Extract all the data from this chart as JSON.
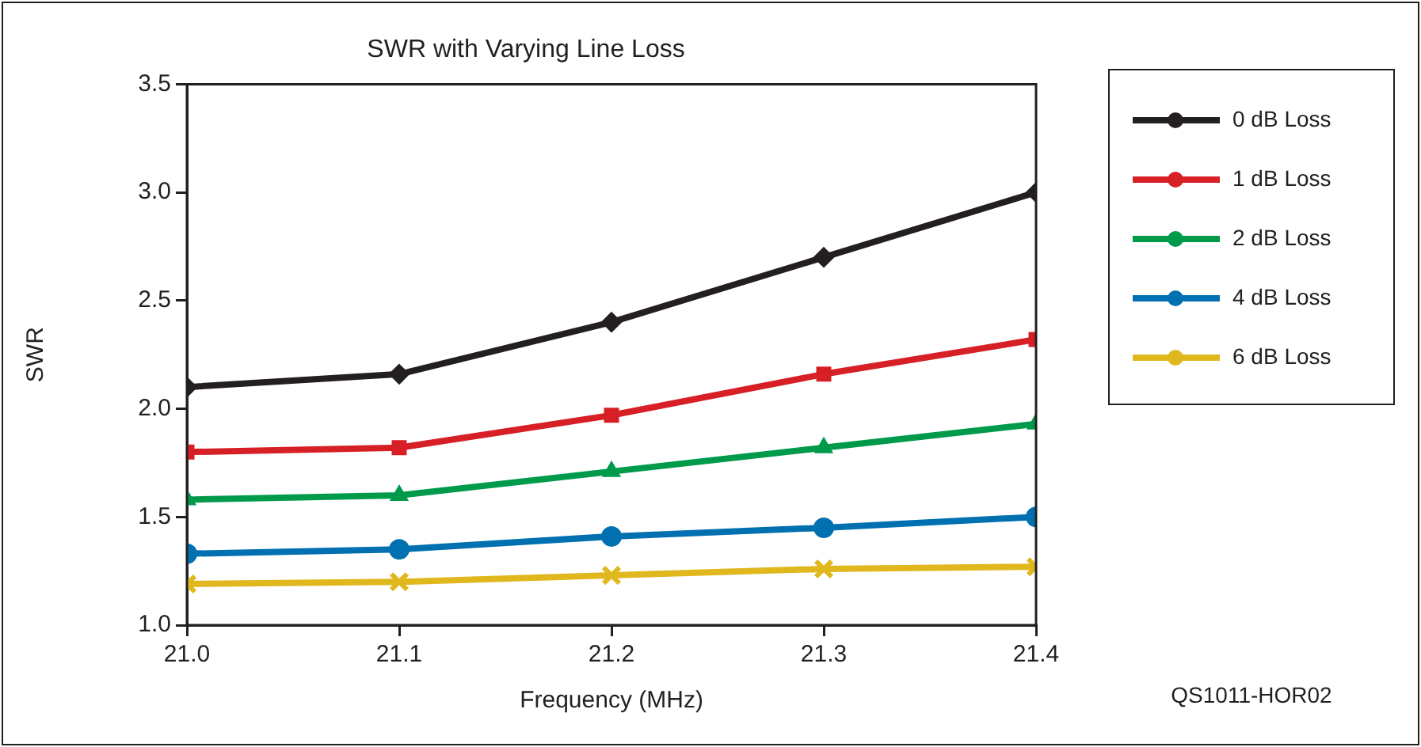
{
  "chart_data": {
    "type": "line",
    "title": "SWR with Varying Line Loss",
    "xlabel": "Frequency (MHz)",
    "ylabel": "SWR",
    "x": [
      21.0,
      21.1,
      21.2,
      21.3,
      21.4
    ],
    "series": [
      {
        "name": "0 dB Loss",
        "color": "#231f20",
        "marker": "diamond",
        "values": [
          2.1,
          2.16,
          2.4,
          2.7,
          3.0
        ]
      },
      {
        "name": "1 dB Loss",
        "color": "#d71f26",
        "marker": "square",
        "values": [
          1.8,
          1.82,
          1.97,
          2.16,
          2.32
        ]
      },
      {
        "name": "2 dB Loss",
        "color": "#009a4b",
        "marker": "triangle",
        "values": [
          1.58,
          1.6,
          1.71,
          1.82,
          1.93
        ]
      },
      {
        "name": "4 dB Loss",
        "color": "#0070b0",
        "marker": "circle",
        "values": [
          1.33,
          1.35,
          1.41,
          1.45,
          1.5
        ]
      },
      {
        "name": "6 dB Loss",
        "color": "#e0b81e",
        "marker": "cross",
        "values": [
          1.19,
          1.2,
          1.23,
          1.26,
          1.27
        ]
      }
    ],
    "xlim": [
      21.0,
      21.4
    ],
    "xticks": [
      {
        "value": 21.0,
        "label": "21.0"
      },
      {
        "value": 21.1,
        "label": "21.1"
      },
      {
        "value": 21.2,
        "label": "21.2"
      },
      {
        "value": 21.3,
        "label": "21.3"
      },
      {
        "value": 21.4,
        "label": "21.4"
      }
    ],
    "ylim": [
      1.0,
      3.5
    ],
    "yticks": [
      {
        "value": 1.0,
        "label": "1.0"
      },
      {
        "value": 1.5,
        "label": "1.5"
      },
      {
        "value": 2.0,
        "label": "2.0"
      },
      {
        "value": 2.5,
        "label": "2.5"
      },
      {
        "value": 3.0,
        "label": "3.0"
      },
      {
        "value": 3.5,
        "label": "3.5"
      }
    ],
    "grid": false,
    "legend": "top right",
    "line_style": "solid",
    "annotations": [
      "QS1011-HOR02"
    ]
  }
}
